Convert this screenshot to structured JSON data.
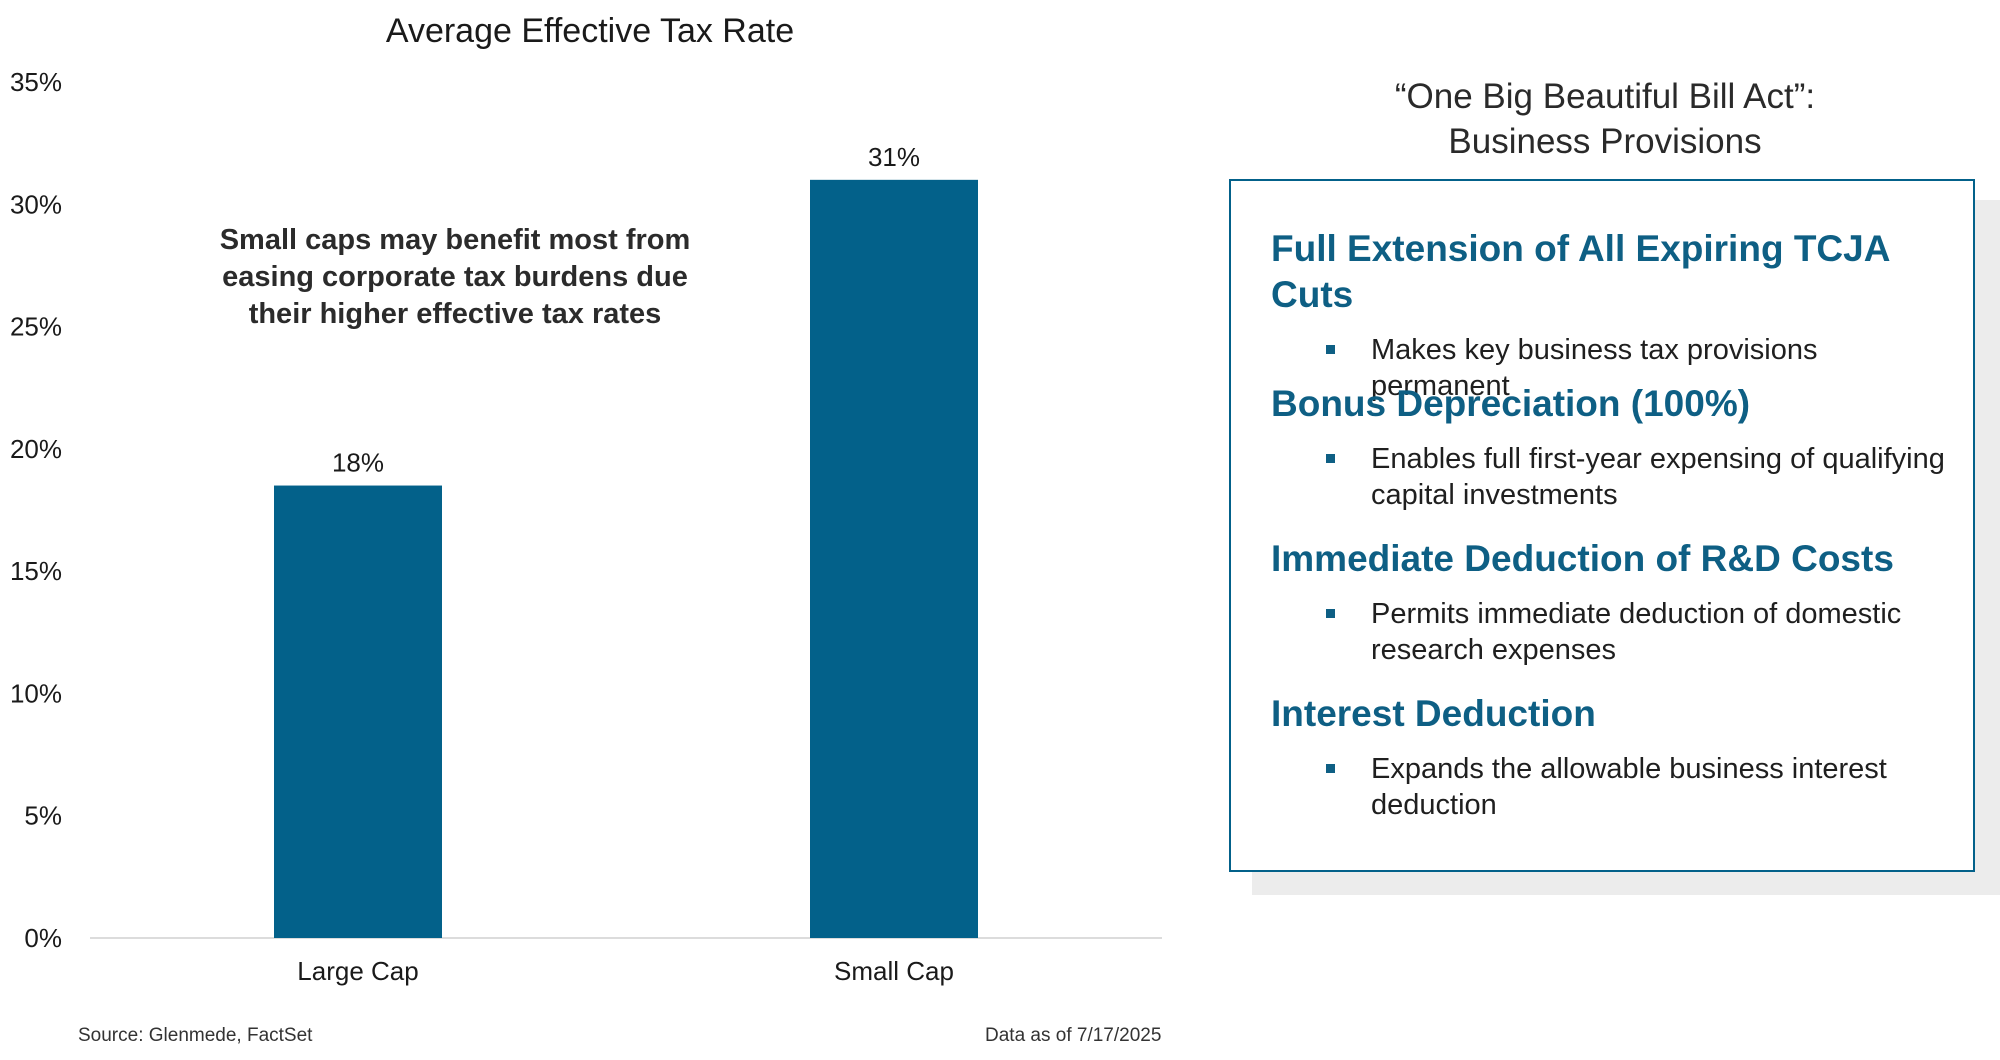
{
  "chart_data": {
    "type": "bar",
    "title": "Average Effective Tax Rate",
    "categories": [
      "Large Cap",
      "Small Cap"
    ],
    "values": [
      18.5,
      31
    ],
    "data_labels": [
      "18%",
      "31%"
    ],
    "ylim": [
      0,
      35
    ],
    "y_ticks": [
      0,
      5,
      10,
      15,
      20,
      25,
      30,
      35
    ],
    "y_tick_labels": [
      "0%",
      "5%",
      "10%",
      "15%",
      "20%",
      "25%",
      "30%",
      "35%"
    ],
    "xlabel": "",
    "ylabel": "",
    "grid": false,
    "bar_color": "#03618a",
    "annotation": [
      "Small caps may benefit most from",
      "easing corporate tax burdens due",
      "their higher effective tax rates"
    ]
  },
  "footer": {
    "source": "Source: Glenmede, FactSet",
    "as_of": "Data as of 7/17/2025"
  },
  "panel": {
    "title_lines": [
      "“One Big Beautiful Bill Act”:",
      "Business Provisions"
    ],
    "accent_color": "#0e5f84",
    "provisions": [
      {
        "heading": "Full Extension of All Expiring TCJA Cuts",
        "bullet": "Makes key business tax provisions permanent"
      },
      {
        "heading": "Bonus Depreciation (100%)",
        "bullet": "Enables full first-year expensing of qualifying capital investments"
      },
      {
        "heading": "Immediate Deduction of R&D Costs",
        "bullet": "Permits immediate deduction of domestic research expenses"
      },
      {
        "heading": "Interest Deduction",
        "bullet": "Expands the allowable business interest deduction"
      }
    ]
  }
}
